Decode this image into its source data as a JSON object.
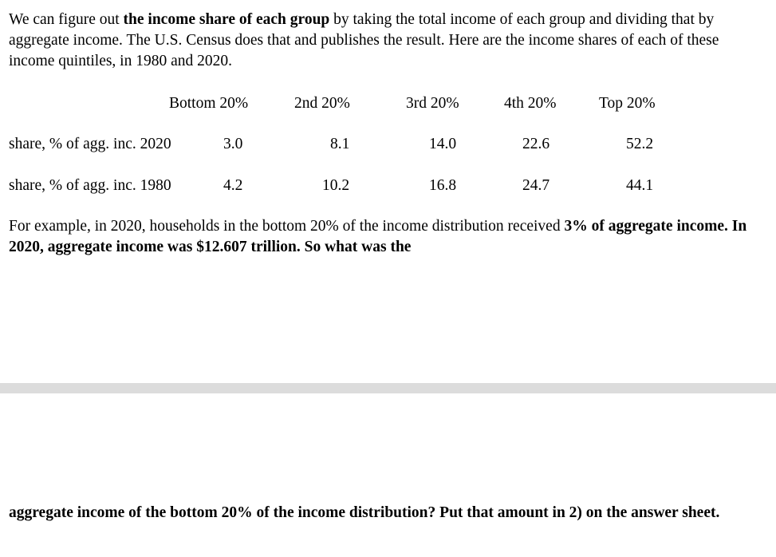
{
  "intro": {
    "part1": "We can figure out ",
    "bold1": "the income share of each group",
    "part2": " by taking the total income of each group and dividing that by aggregate income.  The U.S. Census does that and publishes the result.  Here are the income shares of each of these income quintiles, in 1980 and 2020."
  },
  "table": {
    "headers": [
      "Bottom 20%",
      "2nd 20%",
      "3rd 20%",
      "4th 20%",
      "Top 20%"
    ],
    "rows": [
      {
        "label": "share, % of agg. inc. 2020",
        "values": [
          "3.0",
          "8.1",
          "14.0",
          "22.6",
          "52.2"
        ]
      },
      {
        "label": "share, % of agg. inc. 1980",
        "values": [
          "4.2",
          "10.2",
          "16.8",
          "24.7",
          "44.1"
        ]
      }
    ]
  },
  "example": {
    "part1": "For example, in 2020, households in the bottom 20% of the income distribution received ",
    "bold1": "3% of aggregate income.  In 2020, aggregate income was $12.607 trillion.  So what was the"
  },
  "question": {
    "bold1": "aggregate income of the bottom 20% of the income distribution?  Put that amount in 2) on the answer sheet."
  }
}
